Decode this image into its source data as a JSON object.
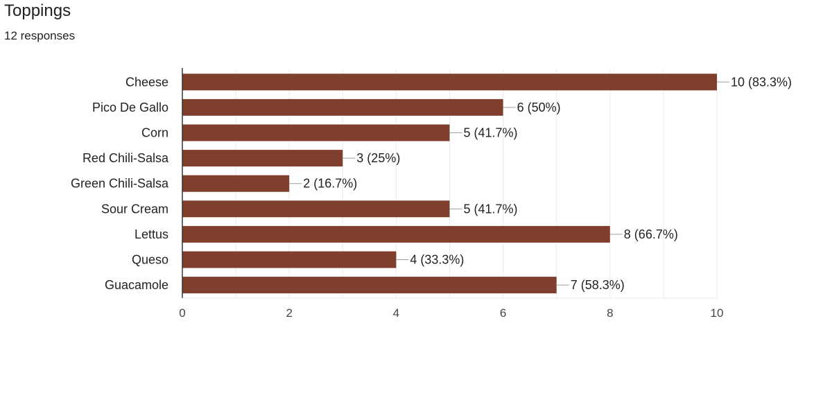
{
  "header": {
    "title": "Toppings",
    "subtitle": "12 responses"
  },
  "colors": {
    "bar": "#7f3f2c",
    "grid": "#ebebeb",
    "axis": "#333333",
    "leader": "#9e9e9e"
  },
  "chart_data": {
    "type": "bar",
    "orientation": "horizontal",
    "categories": [
      "Cheese",
      "Pico De Gallo",
      "Corn",
      "Red Chili-Salsa",
      "Green Chili-Salsa",
      "Sour Cream",
      "Lettus",
      "Queso",
      "Guacamole"
    ],
    "values": [
      10,
      6,
      5,
      3,
      2,
      5,
      8,
      4,
      7
    ],
    "data_labels": [
      "10 (83.3%)",
      "6 (50%)",
      "5 (41.7%)",
      "3 (25%)",
      "2 (16.7%)",
      "5 (41.7%)",
      "8 (66.7%)",
      "4 (33.3%)",
      "7 (58.3%)"
    ],
    "xlim": [
      0,
      10
    ],
    "x_ticks": [
      0,
      2,
      4,
      6,
      8,
      10
    ],
    "grid": true,
    "minor_grid": true,
    "legend": "none"
  }
}
